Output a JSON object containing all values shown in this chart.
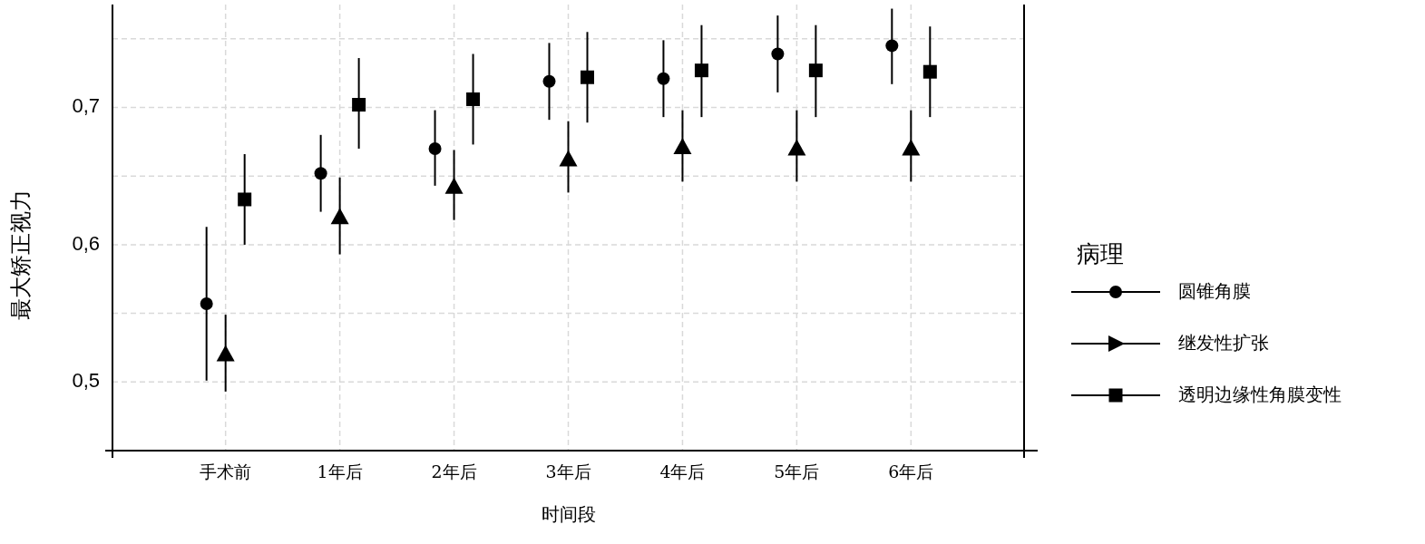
{
  "chart_data": {
    "type": "scatter",
    "xlabel": "时间段",
    "ylabel": "最大矫正视力",
    "legend_title": "病理",
    "legend": "right",
    "grid": true,
    "categories": [
      "手术前",
      "1年后",
      "2年后",
      "3年后",
      "4年后",
      "5年后",
      "6年后"
    ],
    "ylim": [
      0.45,
      0.775
    ],
    "yticks": [
      {
        "value": 0.5,
        "label": "0,5"
      },
      {
        "value": 0.55,
        "label": null
      },
      {
        "value": 0.6,
        "label": "0,6"
      },
      {
        "value": 0.65,
        "label": null
      },
      {
        "value": 0.7,
        "label": "0,7"
      },
      {
        "value": 0.75,
        "label": null
      }
    ],
    "series": [
      {
        "name": "圆锥角膜",
        "color": "#000000",
        "marker": "circle",
        "values": [
          0.557,
          0.652,
          0.67,
          0.719,
          0.721,
          0.739,
          0.745
        ],
        "errors": [
          [
            0.501,
            0.613
          ],
          [
            0.624,
            0.68
          ],
          [
            0.643,
            0.698
          ],
          [
            0.691,
            0.747
          ],
          [
            0.693,
            0.749
          ],
          [
            0.711,
            0.767
          ],
          [
            0.717,
            0.772
          ]
        ]
      },
      {
        "name": "继发性扩张",
        "color": "#000000",
        "marker": "triangle",
        "values": [
          0.519,
          0.619,
          0.641,
          0.661,
          0.67,
          0.669,
          0.669
        ],
        "errors": [
          [
            0.493,
            0.549
          ],
          [
            0.593,
            0.649
          ],
          [
            0.618,
            0.669
          ],
          [
            0.638,
            0.69
          ],
          [
            0.646,
            0.698
          ],
          [
            0.646,
            0.698
          ],
          [
            0.646,
            0.698
          ]
        ]
      },
      {
        "name": "透明边缘性角膜变性",
        "color": "#000000",
        "marker": "square",
        "values": [
          0.633,
          0.702,
          0.706,
          0.722,
          0.727,
          0.727,
          0.726
        ],
        "errors": [
          [
            0.6,
            0.666
          ],
          [
            0.67,
            0.736
          ],
          [
            0.673,
            0.739
          ],
          [
            0.689,
            0.755
          ],
          [
            0.693,
            0.76
          ],
          [
            0.693,
            0.76
          ],
          [
            0.693,
            0.759
          ]
        ]
      }
    ]
  }
}
